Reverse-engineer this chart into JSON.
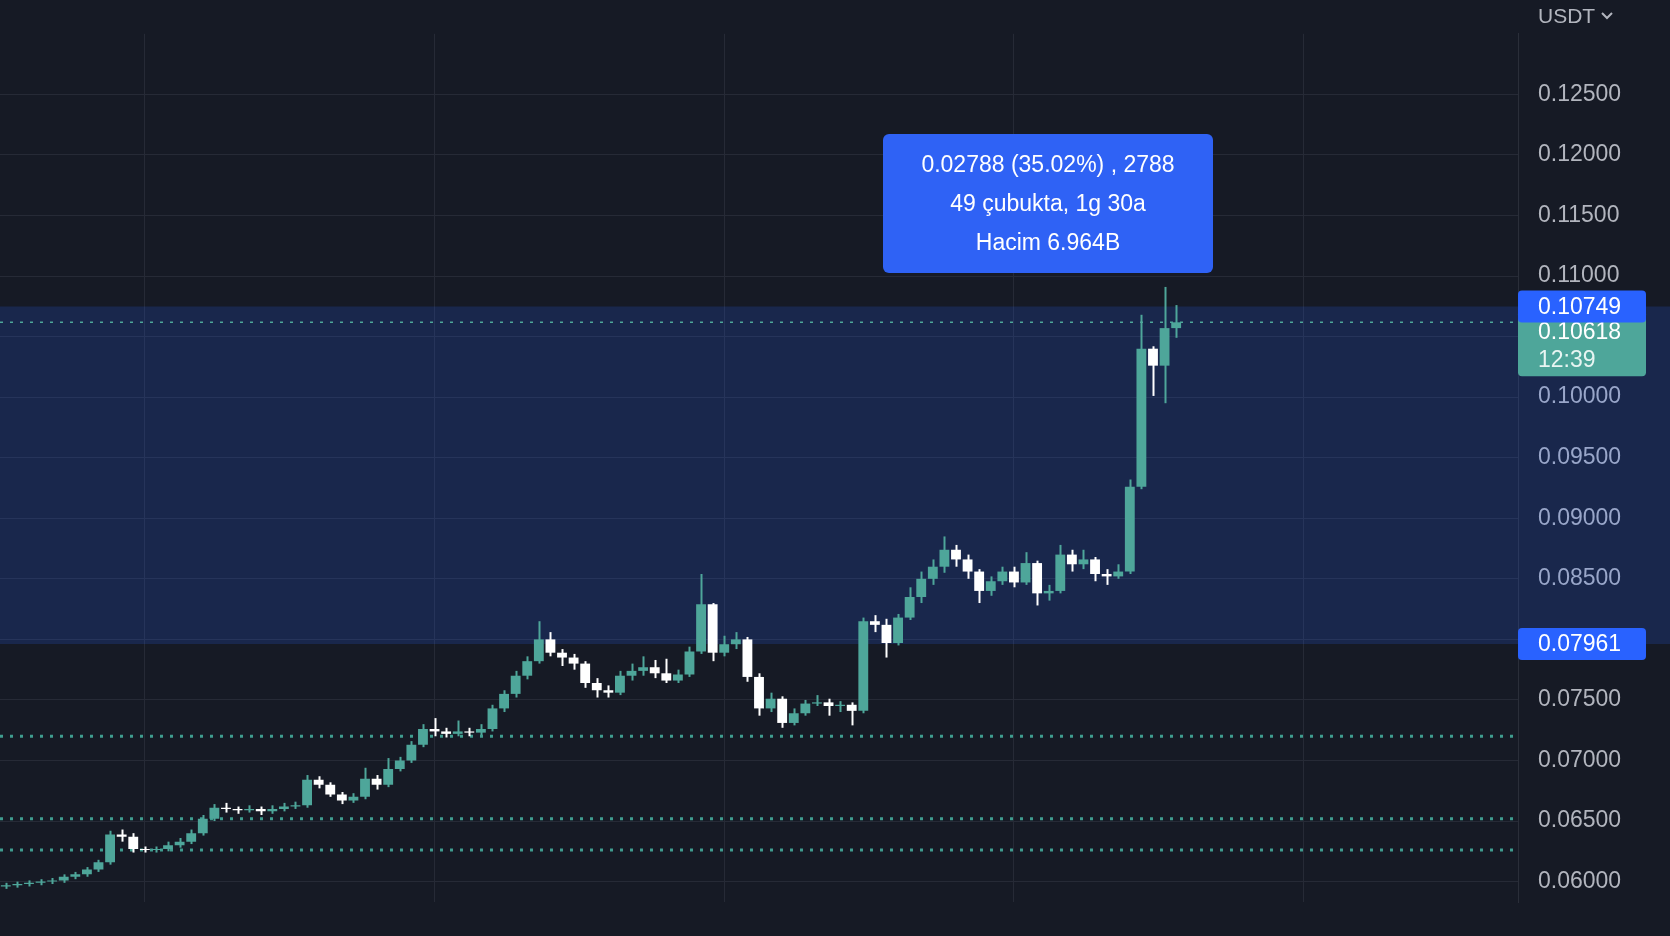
{
  "chart_data": {
    "type": "candlestick",
    "categories": [
      null,
      null,
      null,
      null,
      null,
      null,
      null,
      null,
      null,
      null,
      null,
      null,
      null,
      null,
      null,
      null,
      null,
      null,
      null,
      null,
      null,
      null,
      null,
      null,
      null,
      null,
      null,
      null,
      null,
      null,
      null,
      null,
      null,
      null,
      null,
      null,
      null,
      null,
      null,
      null,
      null,
      null,
      null,
      null,
      null,
      null,
      null,
      null,
      null,
      null,
      null,
      null,
      null,
      null,
      null,
      null,
      null,
      null,
      null,
      null,
      null,
      null,
      null,
      null,
      null,
      null,
      null,
      null,
      null,
      null,
      null,
      null,
      null,
      null,
      null,
      null,
      null,
      null,
      null,
      null,
      null,
      null,
      null,
      null,
      null,
      null,
      null,
      null,
      null,
      null,
      null,
      null,
      null,
      null,
      null,
      null,
      null,
      null,
      null,
      null,
      null,
      null,
      null,
      null,
      null,
      null,
      null,
      null,
      null,
      null,
      null,
      null,
      null,
      null,
      null,
      null,
      null,
      null,
      null,
      null,
      null,
      null,
      null,
      null,
      null,
      null,
      null,
      null,
      null,
      null,
      null
    ],
    "ohlc": [
      [
        0.0596,
        0.0599,
        0.0594,
        0.0597
      ],
      [
        0.0597,
        0.06,
        0.0595,
        0.0598
      ],
      [
        0.0598,
        0.0601,
        0.0596,
        0.0599
      ],
      [
        0.0599,
        0.0602,
        0.0597,
        0.06
      ],
      [
        0.06,
        0.0603,
        0.0598,
        0.0601
      ],
      [
        0.0601,
        0.0606,
        0.0599,
        0.0604
      ],
      [
        0.0604,
        0.0608,
        0.0602,
        0.0606
      ],
      [
        0.0606,
        0.0612,
        0.0604,
        0.061
      ],
      [
        0.061,
        0.0618,
        0.0608,
        0.0616
      ],
      [
        0.0616,
        0.0642,
        0.0614,
        0.0639
      ],
      [
        0.0639,
        0.0643,
        0.0633,
        0.0637
      ],
      [
        0.0637,
        0.064,
        0.0624,
        0.0627
      ],
      [
        0.0627,
        0.0629,
        0.0624,
        0.0626
      ],
      [
        0.0626,
        0.0629,
        0.0624,
        0.0627
      ],
      [
        0.0627,
        0.0633,
        0.0625,
        0.063
      ],
      [
        0.063,
        0.0636,
        0.0628,
        0.0633
      ],
      [
        0.0633,
        0.0643,
        0.0631,
        0.064
      ],
      [
        0.064,
        0.0655,
        0.0638,
        0.0652
      ],
      [
        0.0652,
        0.0664,
        0.065,
        0.0661
      ],
      [
        0.0661,
        0.0665,
        0.0657,
        0.066
      ],
      [
        0.066,
        0.0662,
        0.0656,
        0.0659
      ],
      [
        0.0659,
        0.0663,
        0.0657,
        0.066
      ],
      [
        0.066,
        0.0662,
        0.0655,
        0.0658
      ],
      [
        0.0658,
        0.0663,
        0.0656,
        0.066
      ],
      [
        0.066,
        0.0665,
        0.0658,
        0.0662
      ],
      [
        0.0662,
        0.0666,
        0.066,
        0.0663
      ],
      [
        0.0663,
        0.0688,
        0.0661,
        0.0684
      ],
      [
        0.0684,
        0.0687,
        0.0677,
        0.068
      ],
      [
        0.068,
        0.0682,
        0.067,
        0.0672
      ],
      [
        0.0672,
        0.0674,
        0.0664,
        0.0667
      ],
      [
        0.0667,
        0.0673,
        0.0665,
        0.067
      ],
      [
        0.067,
        0.0694,
        0.0668,
        0.0685
      ],
      [
        0.0685,
        0.0688,
        0.0676,
        0.068
      ],
      [
        0.068,
        0.0702,
        0.0678,
        0.0693
      ],
      [
        0.0693,
        0.0703,
        0.0691,
        0.07
      ],
      [
        0.07,
        0.0716,
        0.0698,
        0.0713
      ],
      [
        0.0713,
        0.073,
        0.0711,
        0.0726
      ],
      [
        0.0726,
        0.0735,
        0.072,
        0.0724
      ],
      [
        0.0724,
        0.0727,
        0.0719,
        0.0722
      ],
      [
        0.0722,
        0.0733,
        0.072,
        0.0724
      ],
      [
        0.0724,
        0.0727,
        0.072,
        0.0723
      ],
      [
        0.0723,
        0.073,
        0.0721,
        0.0726
      ],
      [
        0.0726,
        0.0746,
        0.0724,
        0.0743
      ],
      [
        0.0743,
        0.0758,
        0.074,
        0.0755
      ],
      [
        0.0755,
        0.0774,
        0.0752,
        0.077
      ],
      [
        0.077,
        0.0786,
        0.0767,
        0.0782
      ],
      [
        0.0782,
        0.0815,
        0.078,
        0.08
      ],
      [
        0.08,
        0.0806,
        0.0786,
        0.0789
      ],
      [
        0.0789,
        0.0792,
        0.0778,
        0.0785
      ],
      [
        0.0785,
        0.0788,
        0.0775,
        0.078
      ],
      [
        0.078,
        0.0782,
        0.076,
        0.0764
      ],
      [
        0.0764,
        0.0768,
        0.0752,
        0.0758
      ],
      [
        0.0758,
        0.0762,
        0.0752,
        0.0756
      ],
      [
        0.0756,
        0.0774,
        0.0754,
        0.077
      ],
      [
        0.077,
        0.078,
        0.0766,
        0.0774
      ],
      [
        0.0774,
        0.0786,
        0.077,
        0.0777
      ],
      [
        0.0777,
        0.0783,
        0.0768,
        0.0772
      ],
      [
        0.0772,
        0.0784,
        0.0764,
        0.0766
      ],
      [
        0.0766,
        0.0775,
        0.0764,
        0.0771
      ],
      [
        0.0771,
        0.0794,
        0.0769,
        0.079
      ],
      [
        0.079,
        0.0854,
        0.0788,
        0.0829
      ],
      [
        0.0829,
        0.083,
        0.0782,
        0.0789
      ],
      [
        0.0789,
        0.0803,
        0.0786,
        0.0796
      ],
      [
        0.0796,
        0.0806,
        0.0792,
        0.08
      ],
      [
        0.08,
        0.0802,
        0.0765,
        0.0769
      ],
      [
        0.0769,
        0.0772,
        0.0737,
        0.0743
      ],
      [
        0.0743,
        0.0756,
        0.074,
        0.0751
      ],
      [
        0.0751,
        0.0753,
        0.0727,
        0.0731
      ],
      [
        0.0731,
        0.0743,
        0.0729,
        0.0739
      ],
      [
        0.0739,
        0.075,
        0.0737,
        0.0747
      ],
      [
        0.0747,
        0.0754,
        0.0745,
        0.0748
      ],
      [
        0.0748,
        0.0751,
        0.0737,
        0.0745
      ],
      [
        0.0745,
        0.0749,
        0.074,
        0.0746
      ],
      [
        0.0746,
        0.0748,
        0.0729,
        0.0741
      ],
      [
        0.0741,
        0.0818,
        0.0739,
        0.0815
      ],
      [
        0.0815,
        0.082,
        0.0806,
        0.0812
      ],
      [
        0.0812,
        0.0817,
        0.0785,
        0.0797
      ],
      [
        0.0797,
        0.0821,
        0.0795,
        0.0818
      ],
      [
        0.0818,
        0.0843,
        0.0816,
        0.0835
      ],
      [
        0.0835,
        0.0856,
        0.083,
        0.085
      ],
      [
        0.085,
        0.0866,
        0.0845,
        0.086
      ],
      [
        0.086,
        0.0885,
        0.0855,
        0.0874
      ],
      [
        0.0874,
        0.0878,
        0.086,
        0.0866
      ],
      [
        0.0866,
        0.087,
        0.085,
        0.0856
      ],
      [
        0.0856,
        0.0858,
        0.083,
        0.084
      ],
      [
        0.084,
        0.0852,
        0.0836,
        0.0848
      ],
      [
        0.0848,
        0.086,
        0.0845,
        0.0856
      ],
      [
        0.0856,
        0.086,
        0.0843,
        0.0847
      ],
      [
        0.0847,
        0.0872,
        0.0845,
        0.0863
      ],
      [
        0.0863,
        0.0865,
        0.0828,
        0.0838
      ],
      [
        0.0838,
        0.0845,
        0.0832,
        0.084
      ],
      [
        0.084,
        0.0878,
        0.0838,
        0.087
      ],
      [
        0.087,
        0.0874,
        0.0856,
        0.0862
      ],
      [
        0.0862,
        0.0874,
        0.0858,
        0.0866
      ],
      [
        0.0866,
        0.0868,
        0.0848,
        0.0854
      ],
      [
        0.0854,
        0.0858,
        0.0845,
        0.0852
      ],
      [
        0.0852,
        0.0862,
        0.085,
        0.0856
      ],
      [
        0.0856,
        0.0932,
        0.0854,
        0.0926
      ],
      [
        0.0926,
        0.1068,
        0.0924,
        0.104
      ],
      [
        0.104,
        0.1042,
        0.1001,
        0.1026
      ],
      [
        0.1026,
        0.1091,
        0.0995,
        0.1057
      ],
      [
        0.1057,
        0.1076,
        0.1049,
        0.10618
      ],
      null,
      null,
      null,
      null,
      null,
      null,
      null,
      null,
      null,
      null,
      null,
      null,
      null,
      null,
      null,
      null,
      null,
      null,
      null,
      null,
      null,
      null,
      null,
      null,
      null,
      null,
      null,
      null,
      null
    ],
    "colors": [
      "#4ea69a",
      "#4ea69a",
      "#4ea69a",
      "#4ea69a",
      "#4ea69a",
      "#4ea69a",
      "#4ea69a",
      "#4ea69a",
      "#4ea69a",
      "#4ea69a",
      "#ffffff",
      "#ffffff",
      "#ffffff",
      "#4ea69a",
      "#4ea69a",
      "#4ea69a",
      "#4ea69a",
      "#4ea69a",
      "#4ea69a",
      "#ffffff",
      "#ffffff",
      "#4ea69a",
      "#ffffff",
      "#4ea69a",
      "#4ea69a",
      "#4ea69a",
      "#4ea69a",
      "#ffffff",
      "#ffffff",
      "#ffffff",
      "#4ea69a",
      "#4ea69a",
      "#ffffff",
      "#4ea69a",
      "#4ea69a",
      "#4ea69a",
      "#4ea69a",
      "#ffffff",
      "#ffffff",
      "#4ea69a",
      "#ffffff",
      "#4ea69a",
      "#4ea69a",
      "#4ea69a",
      "#4ea69a",
      "#4ea69a",
      "#4ea69a",
      "#ffffff",
      "#ffffff",
      "#ffffff",
      "#ffffff",
      "#ffffff",
      "#ffffff",
      "#4ea69a",
      "#4ea69a",
      "#4ea69a",
      "#ffffff",
      "#ffffff",
      "#4ea69a",
      "#4ea69a",
      "#4ea69a",
      "#ffffff",
      "#4ea69a",
      "#4ea69a",
      "#ffffff",
      "#ffffff",
      "#4ea69a",
      "#ffffff",
      "#4ea69a",
      "#4ea69a",
      "#4ea69a",
      "#ffffff",
      "#4ea69a",
      "#ffffff",
      "#4ea69a",
      "#ffffff",
      "#ffffff",
      "#4ea69a",
      "#4ea69a",
      "#4ea69a",
      "#4ea69a",
      "#4ea69a",
      "#ffffff",
      "#ffffff",
      "#ffffff",
      "#4ea69a",
      "#4ea69a",
      "#ffffff",
      "#4ea69a",
      "#ffffff",
      "#4ea69a",
      "#4ea69a",
      "#ffffff",
      "#4ea69a",
      "#ffffff",
      "#ffffff",
      "#4ea69a",
      "#4ea69a",
      "#4ea69a",
      "#ffffff",
      "#4ea69a",
      "#4ea69a",
      null,
      null,
      null,
      null,
      null,
      null,
      null,
      null,
      null,
      null,
      null,
      null,
      null,
      null,
      null,
      null,
      null,
      null,
      null,
      null,
      null,
      null,
      null,
      null,
      null,
      null,
      null,
      null,
      null
    ],
    "ylim": [
      0.0583,
      0.13
    ],
    "yticks": [
      {
        "value": 0.06,
        "label": "0.06000"
      },
      {
        "value": 0.065,
        "label": "0.06500"
      },
      {
        "value": 0.07,
        "label": "0.07000"
      },
      {
        "value": 0.075,
        "label": "0.07500"
      },
      {
        "value": 0.08,
        "label": null
      },
      {
        "value": 0.085,
        "label": "0.08500"
      },
      {
        "value": 0.09,
        "label": "0.09000"
      },
      {
        "value": 0.095,
        "label": "0.09500"
      },
      {
        "value": 0.1,
        "label": "0.10000"
      },
      {
        "value": 0.105,
        "label": null
      },
      {
        "value": 0.11,
        "label": "0.11000"
      },
      {
        "value": 0.115,
        "label": "0.11500"
      },
      {
        "value": 0.12,
        "label": "0.12000"
      },
      {
        "value": 0.125,
        "label": "0.12500"
      }
    ],
    "tick_labels": "y",
    "grid": true,
    "ref_lines": [
      {
        "axis": "y",
        "value": 0.072,
        "color": "#3f9c8f",
        "line_style": "dotted"
      },
      {
        "axis": "y",
        "value": 0.0652,
        "color": "#3f9c8f",
        "line_style": "dotted"
      },
      {
        "axis": "y",
        "value": 0.0626,
        "color": "#3f9c8f",
        "line_style": "dotted"
      },
      {
        "axis": "y",
        "value": 0.10618,
        "label": "0.10618",
        "color": "#4ea69a",
        "line_style": "dotted"
      }
    ],
    "bands": [
      {
        "axis": "y",
        "from": 0.07961,
        "to": 0.10749,
        "color": "#2962ff"
      }
    ],
    "annotations": [
      "0.02788 (35.02%) , 2788",
      "49 çubukta, 1g 30a",
      "Hacim 6.964B",
      "USDT",
      "12:39",
      {
        "text": "0.10749",
        "y": 0.10749
      },
      {
        "text": "0.07961",
        "y": 0.07961
      }
    ]
  }
}
